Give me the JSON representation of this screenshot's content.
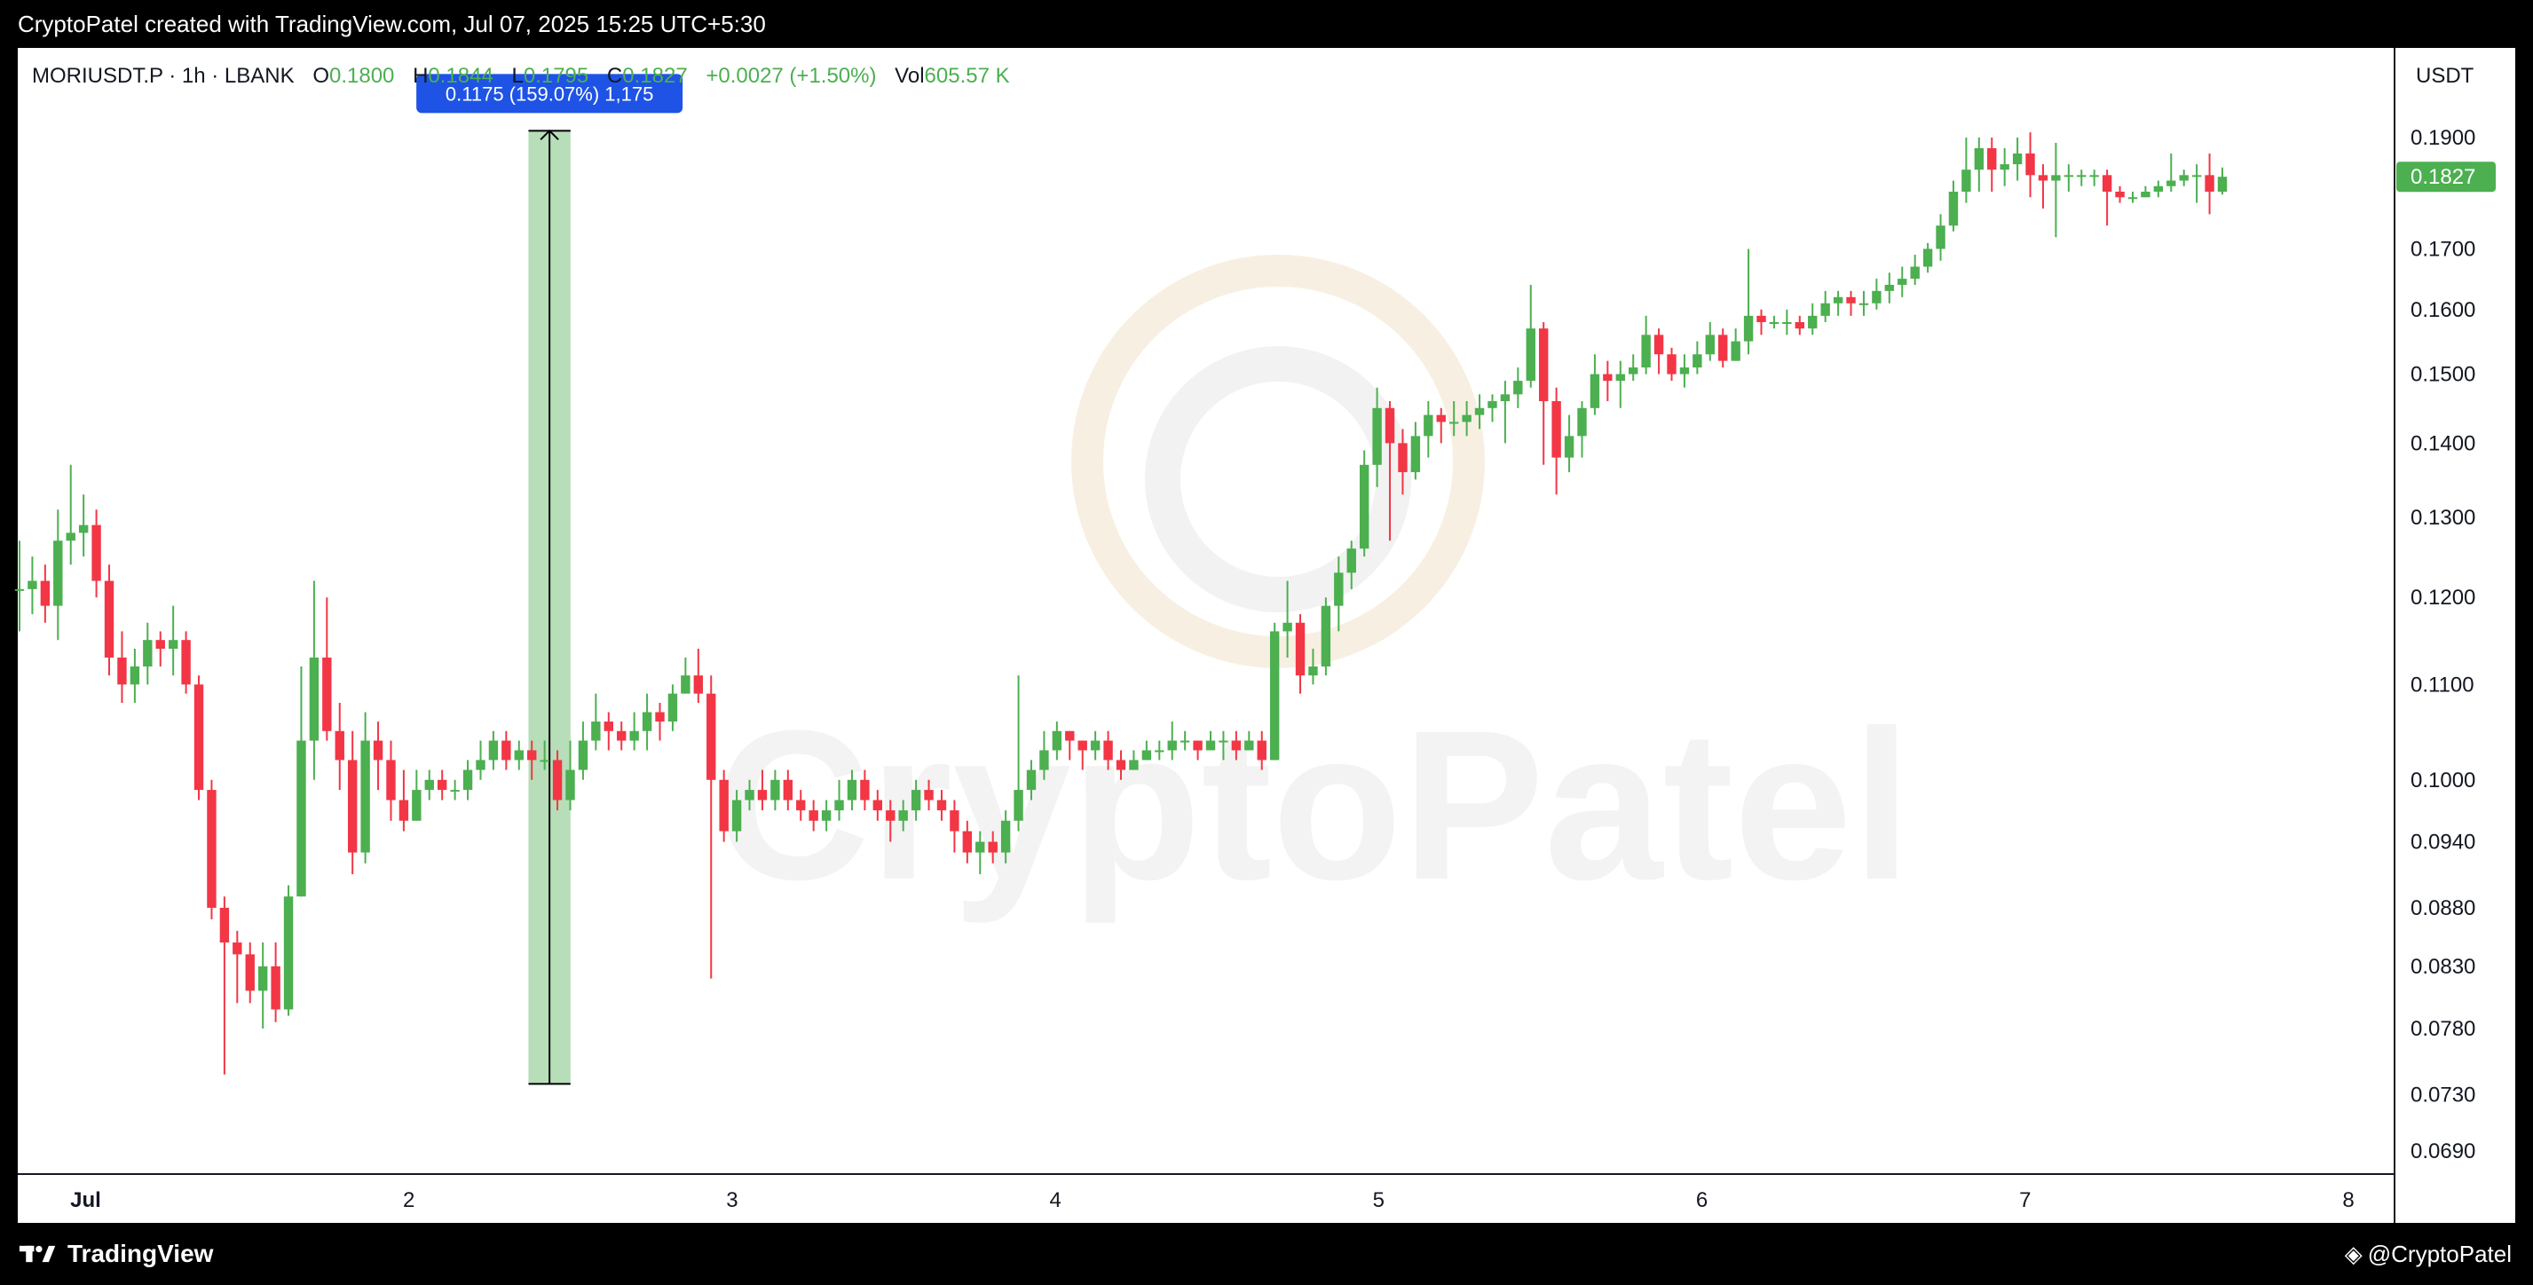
{
  "header": {
    "caption": "CryptoPatel created with TradingView.com, Jul 07, 2025 15:25 UTC+5:30"
  },
  "legend": {
    "symbol": "MORIUSDT.P · 1h · LBANK",
    "o_label": "O",
    "o_value": "0.1800",
    "h_label": "H",
    "h_value": "0.1844",
    "l_label": "L",
    "l_value": "0.1795",
    "c_label": "C",
    "c_value": "0.1827",
    "change": "+0.0027 (+1.50%)",
    "vol_label": "Vol",
    "vol_value": "605.57 K"
  },
  "axis": {
    "currency": "USDT"
  },
  "footer": {
    "brand": "TradingView",
    "watermark_handle": "@CryptoPatel"
  },
  "watermark": {
    "text": "CryptoPatel"
  },
  "colors": {
    "up": "#4caf50",
    "down": "#f23645",
    "measure_fill": "#a5d6a7",
    "tooltip_bg": "#1e53e5",
    "price_label": "#4caf50"
  },
  "chart_data": {
    "type": "candlestick",
    "y_scale": "log",
    "ylim": [
      0.0675,
      0.1995
    ],
    "y_ticks": [
      "0.1900",
      "0.1700",
      "0.1600",
      "0.1500",
      "0.1400",
      "0.1300",
      "0.1200",
      "0.1100",
      "0.1000",
      "0.0940",
      "0.0880",
      "0.0830",
      "0.0780",
      "0.0730",
      "0.0690"
    ],
    "x_ticks": [
      "Jul",
      "2",
      "3",
      "4",
      "5",
      "6",
      "7",
      "8"
    ],
    "x_range_days": [
      0.79,
      8.14
    ],
    "last_price": "0.1827",
    "measurement": {
      "label": "0.1175 (159.07%) 1,175",
      "from_price": 0.0738,
      "to_price": 0.1913,
      "from_day": 2.37,
      "to_day": 2.5
    },
    "candles": [
      [
        0.121,
        0.121,
        0.127,
        0.116
      ],
      [
        0.121,
        0.122,
        0.125,
        0.118
      ],
      [
        0.122,
        0.119,
        0.124,
        0.117
      ],
      [
        0.119,
        0.127,
        0.131,
        0.115
      ],
      [
        0.127,
        0.128,
        0.137,
        0.124
      ],
      [
        0.128,
        0.129,
        0.133,
        0.125
      ],
      [
        0.129,
        0.122,
        0.131,
        0.12
      ],
      [
        0.122,
        0.113,
        0.124,
        0.111
      ],
      [
        0.113,
        0.11,
        0.116,
        0.108
      ],
      [
        0.11,
        0.112,
        0.114,
        0.108
      ],
      [
        0.112,
        0.115,
        0.117,
        0.11
      ],
      [
        0.115,
        0.114,
        0.116,
        0.112
      ],
      [
        0.114,
        0.115,
        0.119,
        0.111
      ],
      [
        0.115,
        0.11,
        0.116,
        0.109
      ],
      [
        0.11,
        0.099,
        0.111,
        0.098
      ],
      [
        0.099,
        0.088,
        0.1,
        0.087
      ],
      [
        0.088,
        0.085,
        0.089,
        0.0745
      ],
      [
        0.085,
        0.084,
        0.086,
        0.08
      ],
      [
        0.084,
        0.081,
        0.085,
        0.08
      ],
      [
        0.081,
        0.083,
        0.085,
        0.078
      ],
      [
        0.083,
        0.0795,
        0.085,
        0.0785
      ],
      [
        0.0795,
        0.089,
        0.09,
        0.079
      ],
      [
        0.089,
        0.104,
        0.112,
        0.089
      ],
      [
        0.104,
        0.113,
        0.122,
        0.1
      ],
      [
        0.113,
        0.105,
        0.12,
        0.104
      ],
      [
        0.105,
        0.102,
        0.108,
        0.099
      ],
      [
        0.102,
        0.093,
        0.105,
        0.091
      ],
      [
        0.093,
        0.104,
        0.107,
        0.092
      ],
      [
        0.104,
        0.102,
        0.106,
        0.099
      ],
      [
        0.102,
        0.098,
        0.104,
        0.096
      ],
      [
        0.098,
        0.096,
        0.101,
        0.095
      ],
      [
        0.096,
        0.099,
        0.101,
        0.096
      ],
      [
        0.099,
        0.1,
        0.101,
        0.098
      ],
      [
        0.1,
        0.099,
        0.101,
        0.098
      ],
      [
        0.099,
        0.099,
        0.1,
        0.098
      ],
      [
        0.099,
        0.101,
        0.102,
        0.098
      ],
      [
        0.101,
        0.102,
        0.104,
        0.1
      ],
      [
        0.102,
        0.104,
        0.105,
        0.101
      ],
      [
        0.104,
        0.102,
        0.105,
        0.101
      ],
      [
        0.102,
        0.103,
        0.104,
        0.101
      ],
      [
        0.103,
        0.102,
        0.104,
        0.1
      ],
      [
        0.102,
        0.102,
        0.104,
        0.101
      ],
      [
        0.102,
        0.098,
        0.103,
        0.097
      ],
      [
        0.098,
        0.101,
        0.104,
        0.097
      ],
      [
        0.101,
        0.104,
        0.106,
        0.1
      ],
      [
        0.104,
        0.106,
        0.109,
        0.103
      ],
      [
        0.106,
        0.105,
        0.107,
        0.103
      ],
      [
        0.105,
        0.104,
        0.106,
        0.103
      ],
      [
        0.104,
        0.105,
        0.107,
        0.103
      ],
      [
        0.105,
        0.107,
        0.109,
        0.103
      ],
      [
        0.107,
        0.106,
        0.108,
        0.104
      ],
      [
        0.106,
        0.109,
        0.11,
        0.105
      ],
      [
        0.109,
        0.111,
        0.113,
        0.109
      ],
      [
        0.111,
        0.109,
        0.114,
        0.108
      ],
      [
        0.109,
        0.1,
        0.111,
        0.082
      ],
      [
        0.1,
        0.095,
        0.101,
        0.094
      ],
      [
        0.095,
        0.098,
        0.099,
        0.094
      ],
      [
        0.098,
        0.099,
        0.1,
        0.097
      ],
      [
        0.099,
        0.098,
        0.101,
        0.097
      ],
      [
        0.098,
        0.1,
        0.101,
        0.097
      ],
      [
        0.1,
        0.098,
        0.101,
        0.097
      ],
      [
        0.098,
        0.097,
        0.099,
        0.096
      ],
      [
        0.097,
        0.096,
        0.098,
        0.095
      ],
      [
        0.096,
        0.097,
        0.098,
        0.095
      ],
      [
        0.097,
        0.098,
        0.1,
        0.096
      ],
      [
        0.098,
        0.1,
        0.101,
        0.097
      ],
      [
        0.1,
        0.098,
        0.101,
        0.097
      ],
      [
        0.098,
        0.097,
        0.099,
        0.096
      ],
      [
        0.097,
        0.096,
        0.098,
        0.094
      ],
      [
        0.096,
        0.097,
        0.098,
        0.095
      ],
      [
        0.097,
        0.099,
        0.1,
        0.096
      ],
      [
        0.099,
        0.098,
        0.1,
        0.097
      ],
      [
        0.098,
        0.097,
        0.099,
        0.096
      ],
      [
        0.097,
        0.095,
        0.098,
        0.093
      ],
      [
        0.095,
        0.093,
        0.096,
        0.092
      ],
      [
        0.093,
        0.094,
        0.095,
        0.091
      ],
      [
        0.094,
        0.093,
        0.095,
        0.092
      ],
      [
        0.093,
        0.096,
        0.097,
        0.092
      ],
      [
        0.096,
        0.099,
        0.111,
        0.095
      ],
      [
        0.099,
        0.101,
        0.102,
        0.098
      ],
      [
        0.101,
        0.103,
        0.105,
        0.1
      ],
      [
        0.103,
        0.105,
        0.106,
        0.102
      ],
      [
        0.105,
        0.104,
        0.105,
        0.102
      ],
      [
        0.104,
        0.103,
        0.104,
        0.101
      ],
      [
        0.103,
        0.104,
        0.105,
        0.102
      ],
      [
        0.104,
        0.102,
        0.105,
        0.101
      ],
      [
        0.102,
        0.101,
        0.103,
        0.1
      ],
      [
        0.101,
        0.102,
        0.103,
        0.101
      ],
      [
        0.102,
        0.103,
        0.104,
        0.102
      ],
      [
        0.103,
        0.103,
        0.104,
        0.102
      ],
      [
        0.103,
        0.104,
        0.106,
        0.102
      ],
      [
        0.104,
        0.104,
        0.105,
        0.103
      ],
      [
        0.104,
        0.103,
        0.104,
        0.102
      ],
      [
        0.103,
        0.104,
        0.105,
        0.103
      ],
      [
        0.104,
        0.104,
        0.105,
        0.102
      ],
      [
        0.104,
        0.103,
        0.105,
        0.102
      ],
      [
        0.103,
        0.104,
        0.105,
        0.103
      ],
      [
        0.104,
        0.102,
        0.105,
        0.101
      ],
      [
        0.102,
        0.116,
        0.117,
        0.102
      ],
      [
        0.116,
        0.117,
        0.122,
        0.113
      ],
      [
        0.117,
        0.111,
        0.118,
        0.109
      ],
      [
        0.111,
        0.112,
        0.114,
        0.11
      ],
      [
        0.112,
        0.119,
        0.12,
        0.111
      ],
      [
        0.119,
        0.123,
        0.125,
        0.116
      ],
      [
        0.123,
        0.126,
        0.127,
        0.121
      ],
      [
        0.126,
        0.137,
        0.139,
        0.125
      ],
      [
        0.137,
        0.145,
        0.148,
        0.134
      ],
      [
        0.145,
        0.14,
        0.146,
        0.127
      ],
      [
        0.14,
        0.136,
        0.142,
        0.133
      ],
      [
        0.136,
        0.141,
        0.143,
        0.135
      ],
      [
        0.141,
        0.144,
        0.146,
        0.138
      ],
      [
        0.144,
        0.143,
        0.145,
        0.14
      ],
      [
        0.143,
        0.143,
        0.146,
        0.141
      ],
      [
        0.143,
        0.144,
        0.146,
        0.141
      ],
      [
        0.144,
        0.145,
        0.147,
        0.142
      ],
      [
        0.145,
        0.146,
        0.147,
        0.143
      ],
      [
        0.146,
        0.147,
        0.149,
        0.14
      ],
      [
        0.147,
        0.149,
        0.151,
        0.145
      ],
      [
        0.149,
        0.157,
        0.164,
        0.148
      ],
      [
        0.157,
        0.146,
        0.158,
        0.137
      ],
      [
        0.146,
        0.138,
        0.148,
        0.133
      ],
      [
        0.138,
        0.141,
        0.144,
        0.136
      ],
      [
        0.141,
        0.145,
        0.146,
        0.138
      ],
      [
        0.145,
        0.15,
        0.153,
        0.144
      ],
      [
        0.15,
        0.149,
        0.152,
        0.146
      ],
      [
        0.149,
        0.15,
        0.152,
        0.145
      ],
      [
        0.15,
        0.151,
        0.153,
        0.149
      ],
      [
        0.151,
        0.156,
        0.159,
        0.15
      ],
      [
        0.156,
        0.153,
        0.157,
        0.15
      ],
      [
        0.153,
        0.15,
        0.154,
        0.149
      ],
      [
        0.15,
        0.151,
        0.153,
        0.148
      ],
      [
        0.151,
        0.153,
        0.155,
        0.15
      ],
      [
        0.153,
        0.156,
        0.158,
        0.152
      ],
      [
        0.156,
        0.152,
        0.157,
        0.151
      ],
      [
        0.152,
        0.155,
        0.157,
        0.152
      ],
      [
        0.155,
        0.159,
        0.17,
        0.153
      ],
      [
        0.159,
        0.158,
        0.16,
        0.156
      ],
      [
        0.158,
        0.158,
        0.159,
        0.157
      ],
      [
        0.158,
        0.158,
        0.16,
        0.156
      ],
      [
        0.158,
        0.157,
        0.159,
        0.156
      ],
      [
        0.157,
        0.159,
        0.161,
        0.156
      ],
      [
        0.159,
        0.161,
        0.163,
        0.158
      ],
      [
        0.161,
        0.162,
        0.163,
        0.159
      ],
      [
        0.162,
        0.161,
        0.163,
        0.159
      ],
      [
        0.161,
        0.161,
        0.163,
        0.159
      ],
      [
        0.161,
        0.163,
        0.165,
        0.16
      ],
      [
        0.163,
        0.164,
        0.166,
        0.161
      ],
      [
        0.164,
        0.165,
        0.167,
        0.162
      ],
      [
        0.165,
        0.167,
        0.169,
        0.164
      ],
      [
        0.167,
        0.17,
        0.171,
        0.166
      ],
      [
        0.17,
        0.174,
        0.176,
        0.168
      ],
      [
        0.174,
        0.18,
        0.182,
        0.173
      ],
      [
        0.18,
        0.184,
        0.19,
        0.178
      ],
      [
        0.184,
        0.188,
        0.19,
        0.18
      ],
      [
        0.188,
        0.184,
        0.19,
        0.18
      ],
      [
        0.184,
        0.185,
        0.188,
        0.181
      ],
      [
        0.185,
        0.187,
        0.19,
        0.182
      ],
      [
        0.187,
        0.183,
        0.191,
        0.179
      ],
      [
        0.183,
        0.182,
        0.185,
        0.177
      ],
      [
        0.182,
        0.183,
        0.189,
        0.172
      ],
      [
        0.183,
        0.183,
        0.185,
        0.18
      ],
      [
        0.183,
        0.183,
        0.184,
        0.181
      ],
      [
        0.183,
        0.183,
        0.184,
        0.181
      ],
      [
        0.183,
        0.18,
        0.184,
        0.174
      ],
      [
        0.18,
        0.179,
        0.181,
        0.178
      ],
      [
        0.179,
        0.179,
        0.18,
        0.178
      ],
      [
        0.179,
        0.18,
        0.181,
        0.179
      ],
      [
        0.18,
        0.181,
        0.182,
        0.179
      ],
      [
        0.181,
        0.182,
        0.187,
        0.18
      ],
      [
        0.182,
        0.183,
        0.184,
        0.181
      ],
      [
        0.183,
        0.183,
        0.185,
        0.178
      ],
      [
        0.183,
        0.18,
        0.187,
        0.176
      ],
      [
        0.18,
        0.1827,
        0.1844,
        0.1795
      ]
    ]
  }
}
